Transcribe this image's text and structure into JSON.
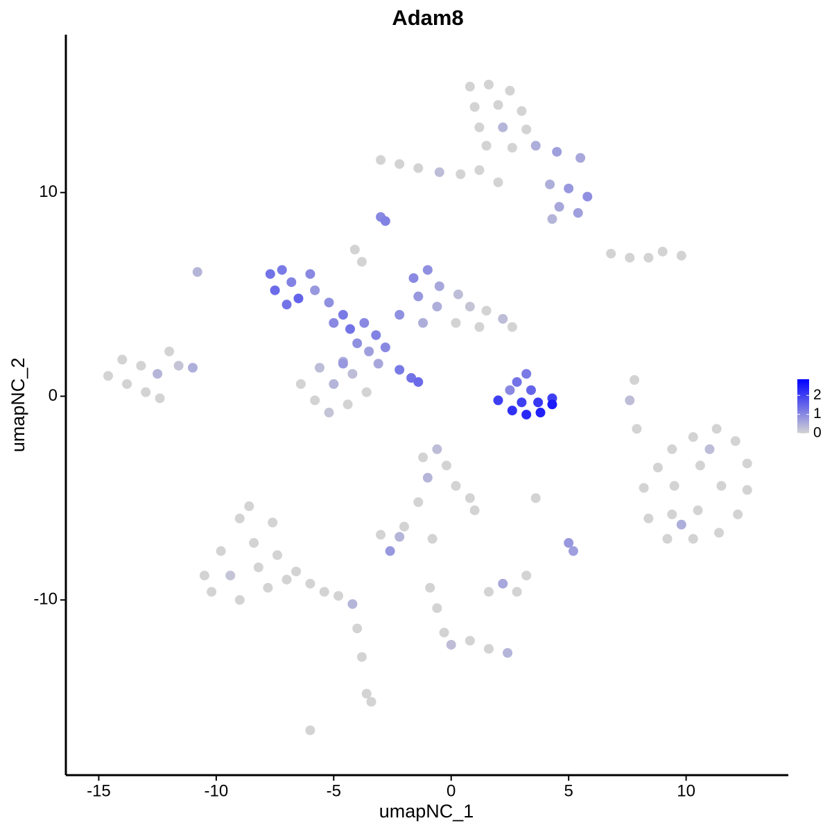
{
  "chart_data": {
    "type": "scatter",
    "title": "Adam8",
    "x_label": "umapNC_1",
    "y_label": "umapNC_2",
    "xlim": [
      -16.4,
      14.35
    ],
    "ylim": [
      -18.6,
      17.75
    ],
    "xticks": [
      -15,
      -10,
      -5,
      0,
      5,
      10
    ],
    "yticks": [
      -10,
      0,
      10
    ],
    "color_low": "#d3d3d3",
    "color_high": "#0000ff",
    "colorlim": [
      0,
      2.85
    ],
    "legend_ticks": [
      0,
      1,
      2
    ],
    "x": [
      0.8,
      1.6,
      2.5,
      1.0,
      2.0,
      3.0,
      1.2,
      2.2,
      3.2,
      1.5,
      2.6,
      3.6,
      4.5,
      5.5,
      -3.0,
      -2.2,
      -1.4,
      -0.5,
      0.4,
      1.2,
      2.0,
      4.2,
      5.0,
      5.8,
      4.6,
      5.4,
      4.3,
      -3.0,
      -2.8,
      6.8,
      7.6,
      8.4,
      9.0,
      9.8,
      -14.6,
      -14.0,
      -13.8,
      -13.2,
      -13.0,
      -12.5,
      -12.0,
      -11.6,
      -11.0,
      -12.4,
      -7.7,
      -7.2,
      -7.5,
      -6.8,
      -6.5,
      -6.0,
      -7.0,
      -5.8,
      -5.2,
      -4.6,
      -5.0,
      -4.3,
      -3.7,
      -3.2,
      -4.0,
      -3.5,
      -2.8,
      -4.6,
      -3.1,
      -2.2,
      -1.7,
      -1.4,
      -1.6,
      -1.0,
      -0.5,
      -1.4,
      -0.6,
      0.3,
      0.8,
      1.5,
      2.2,
      2.6,
      -2.2,
      -1.2,
      0.2,
      1.2,
      -3.8,
      -4.1,
      -6.4,
      -5.6,
      -5.8,
      -5.0,
      -4.4,
      -4.2,
      -3.6,
      -5.2,
      -4.6,
      2.0,
      2.6,
      3.2,
      3.8,
      4.3,
      3.0,
      3.7,
      2.8,
      3.2,
      3.4,
      2.5,
      4.3,
      8.2,
      8.8,
      9.4,
      10.3,
      11.3,
      12.1,
      12.6,
      12.6,
      12.2,
      11.4,
      10.3,
      9.2,
      8.4,
      9.5,
      10.6,
      11.5,
      10.5,
      9.4,
      11.0,
      9.8,
      -1.2,
      -0.6,
      -0.2,
      -1.0,
      0.2,
      0.8,
      1.0,
      -1.4,
      -2.0,
      -3.0,
      -2.2,
      -2.6,
      -0.8,
      -10.5,
      -10.2,
      -9.8,
      -9.4,
      -9.0,
      -9.0,
      -8.6,
      -8.4,
      -8.2,
      -7.8,
      -7.6,
      -7.4,
      -7.0,
      -6.6,
      -6.0,
      -5.4,
      -4.8,
      -4.2,
      -4.0,
      -3.8,
      -3.6,
      -3.4,
      -6.0,
      1.6,
      2.2,
      2.8,
      3.2,
      5.0,
      5.2,
      3.6,
      7.6,
      7.8,
      7.9,
      -0.9,
      -0.6,
      -0.3,
      0.0,
      0.8,
      1.6,
      2.4,
      -10.8
    ],
    "y": [
      15.2,
      15.3,
      15.0,
      14.2,
      14.3,
      14.0,
      13.2,
      13.2,
      13.1,
      12.3,
      12.2,
      12.3,
      12.0,
      11.7,
      11.6,
      11.4,
      11.2,
      11.0,
      10.9,
      11.1,
      10.5,
      10.4,
      10.2,
      9.8,
      9.3,
      9.0,
      8.7,
      8.8,
      8.6,
      7.0,
      6.8,
      6.8,
      7.1,
      6.9,
      1.0,
      1.8,
      0.6,
      1.5,
      0.2,
      1.1,
      2.2,
      1.5,
      1.4,
      -0.1,
      6.0,
      6.2,
      5.2,
      5.6,
      4.8,
      6.0,
      4.5,
      5.2,
      4.6,
      4.0,
      3.6,
      3.3,
      3.6,
      3.0,
      2.6,
      2.2,
      2.4,
      1.6,
      1.6,
      1.3,
      0.9,
      0.7,
      5.8,
      6.2,
      5.4,
      4.9,
      4.4,
      5.0,
      4.4,
      4.2,
      3.8,
      3.4,
      4.0,
      3.6,
      3.6,
      3.4,
      6.6,
      7.2,
      0.6,
      1.4,
      -0.2,
      0.6,
      -0.4,
      1.1,
      0.2,
      -0.8,
      1.7,
      -0.2,
      -0.7,
      -0.9,
      -0.8,
      -0.4,
      -0.3,
      -0.3,
      0.7,
      1.1,
      0.3,
      0.3,
      -0.1,
      -4.5,
      -3.5,
      -2.6,
      -2.0,
      -1.6,
      -2.2,
      -3.3,
      -4.6,
      -5.8,
      -6.7,
      -7.0,
      -7.0,
      -6.0,
      -4.4,
      -3.4,
      -4.4,
      -5.6,
      -5.8,
      -2.6,
      -6.3,
      -3.0,
      -2.6,
      -3.4,
      -4.0,
      -4.4,
      -5.0,
      -5.6,
      -5.2,
      -6.4,
      -6.8,
      -6.9,
      -7.6,
      -7.0,
      -8.8,
      -9.6,
      -7.6,
      -8.8,
      -10.0,
      -6.0,
      -5.4,
      -7.2,
      -8.4,
      -9.4,
      -6.2,
      -7.8,
      -9.0,
      -8.6,
      -9.2,
      -9.6,
      -9.8,
      -10.2,
      -11.4,
      -12.8,
      -14.6,
      -15.0,
      -16.4,
      -9.6,
      -9.2,
      -9.6,
      -8.8,
      -7.2,
      -7.6,
      -5.0,
      -0.2,
      0.8,
      -1.6,
      -9.4,
      -10.4,
      -11.6,
      -12.2,
      -12.0,
      -12.4,
      -12.6,
      6.1
    ],
    "color_values": [
      0,
      0,
      0,
      0,
      0,
      0,
      0,
      0.4,
      0,
      0,
      0,
      0.5,
      0.7,
      0.6,
      0,
      0,
      0,
      0.3,
      0,
      0,
      0,
      0.5,
      0.8,
      0.9,
      0.6,
      0.7,
      0.4,
      1.0,
      1.1,
      0,
      0,
      0,
      0,
      0,
      0,
      0,
      0,
      0,
      0,
      0.4,
      0,
      0.2,
      0.5,
      0,
      1.3,
      1.2,
      1.4,
      1.1,
      1.5,
      1.0,
      1.3,
      0.8,
      0.9,
      1.2,
      1.0,
      1.3,
      1.0,
      1.1,
      0.9,
      0.7,
      1.0,
      0.8,
      0.6,
      1.2,
      1.3,
      1.4,
      1.0,
      0.9,
      0.6,
      0.8,
      0.5,
      0.3,
      0.2,
      0,
      0.3,
      0,
      0.9,
      0.5,
      0,
      0,
      0,
      0,
      0,
      0.3,
      0,
      0.4,
      0,
      0.3,
      0,
      0.2,
      0.5,
      2.0,
      2.2,
      2.3,
      2.4,
      2.5,
      2.0,
      2.1,
      1.3,
      1.2,
      1.5,
      1.0,
      2.0,
      0,
      0,
      0,
      0,
      0,
      0,
      0,
      0,
      0,
      0,
      0,
      0,
      0,
      0,
      0,
      0,
      0,
      0,
      0.3,
      0.5,
      0,
      0.3,
      0,
      0.4,
      0,
      0,
      0,
      0,
      0,
      0,
      0.4,
      0.8,
      0,
      0,
      0,
      0,
      0.2,
      0,
      0,
      0,
      0,
      0,
      0,
      0,
      0,
      0,
      0,
      0,
      0,
      0,
      0.4,
      0,
      0,
      0,
      0,
      0,
      0,
      0.6,
      0,
      0,
      0.8,
      0.7,
      0,
      0.3,
      0,
      0,
      0,
      0,
      0,
      0.3,
      0,
      0,
      0.4,
      0.4
    ]
  }
}
